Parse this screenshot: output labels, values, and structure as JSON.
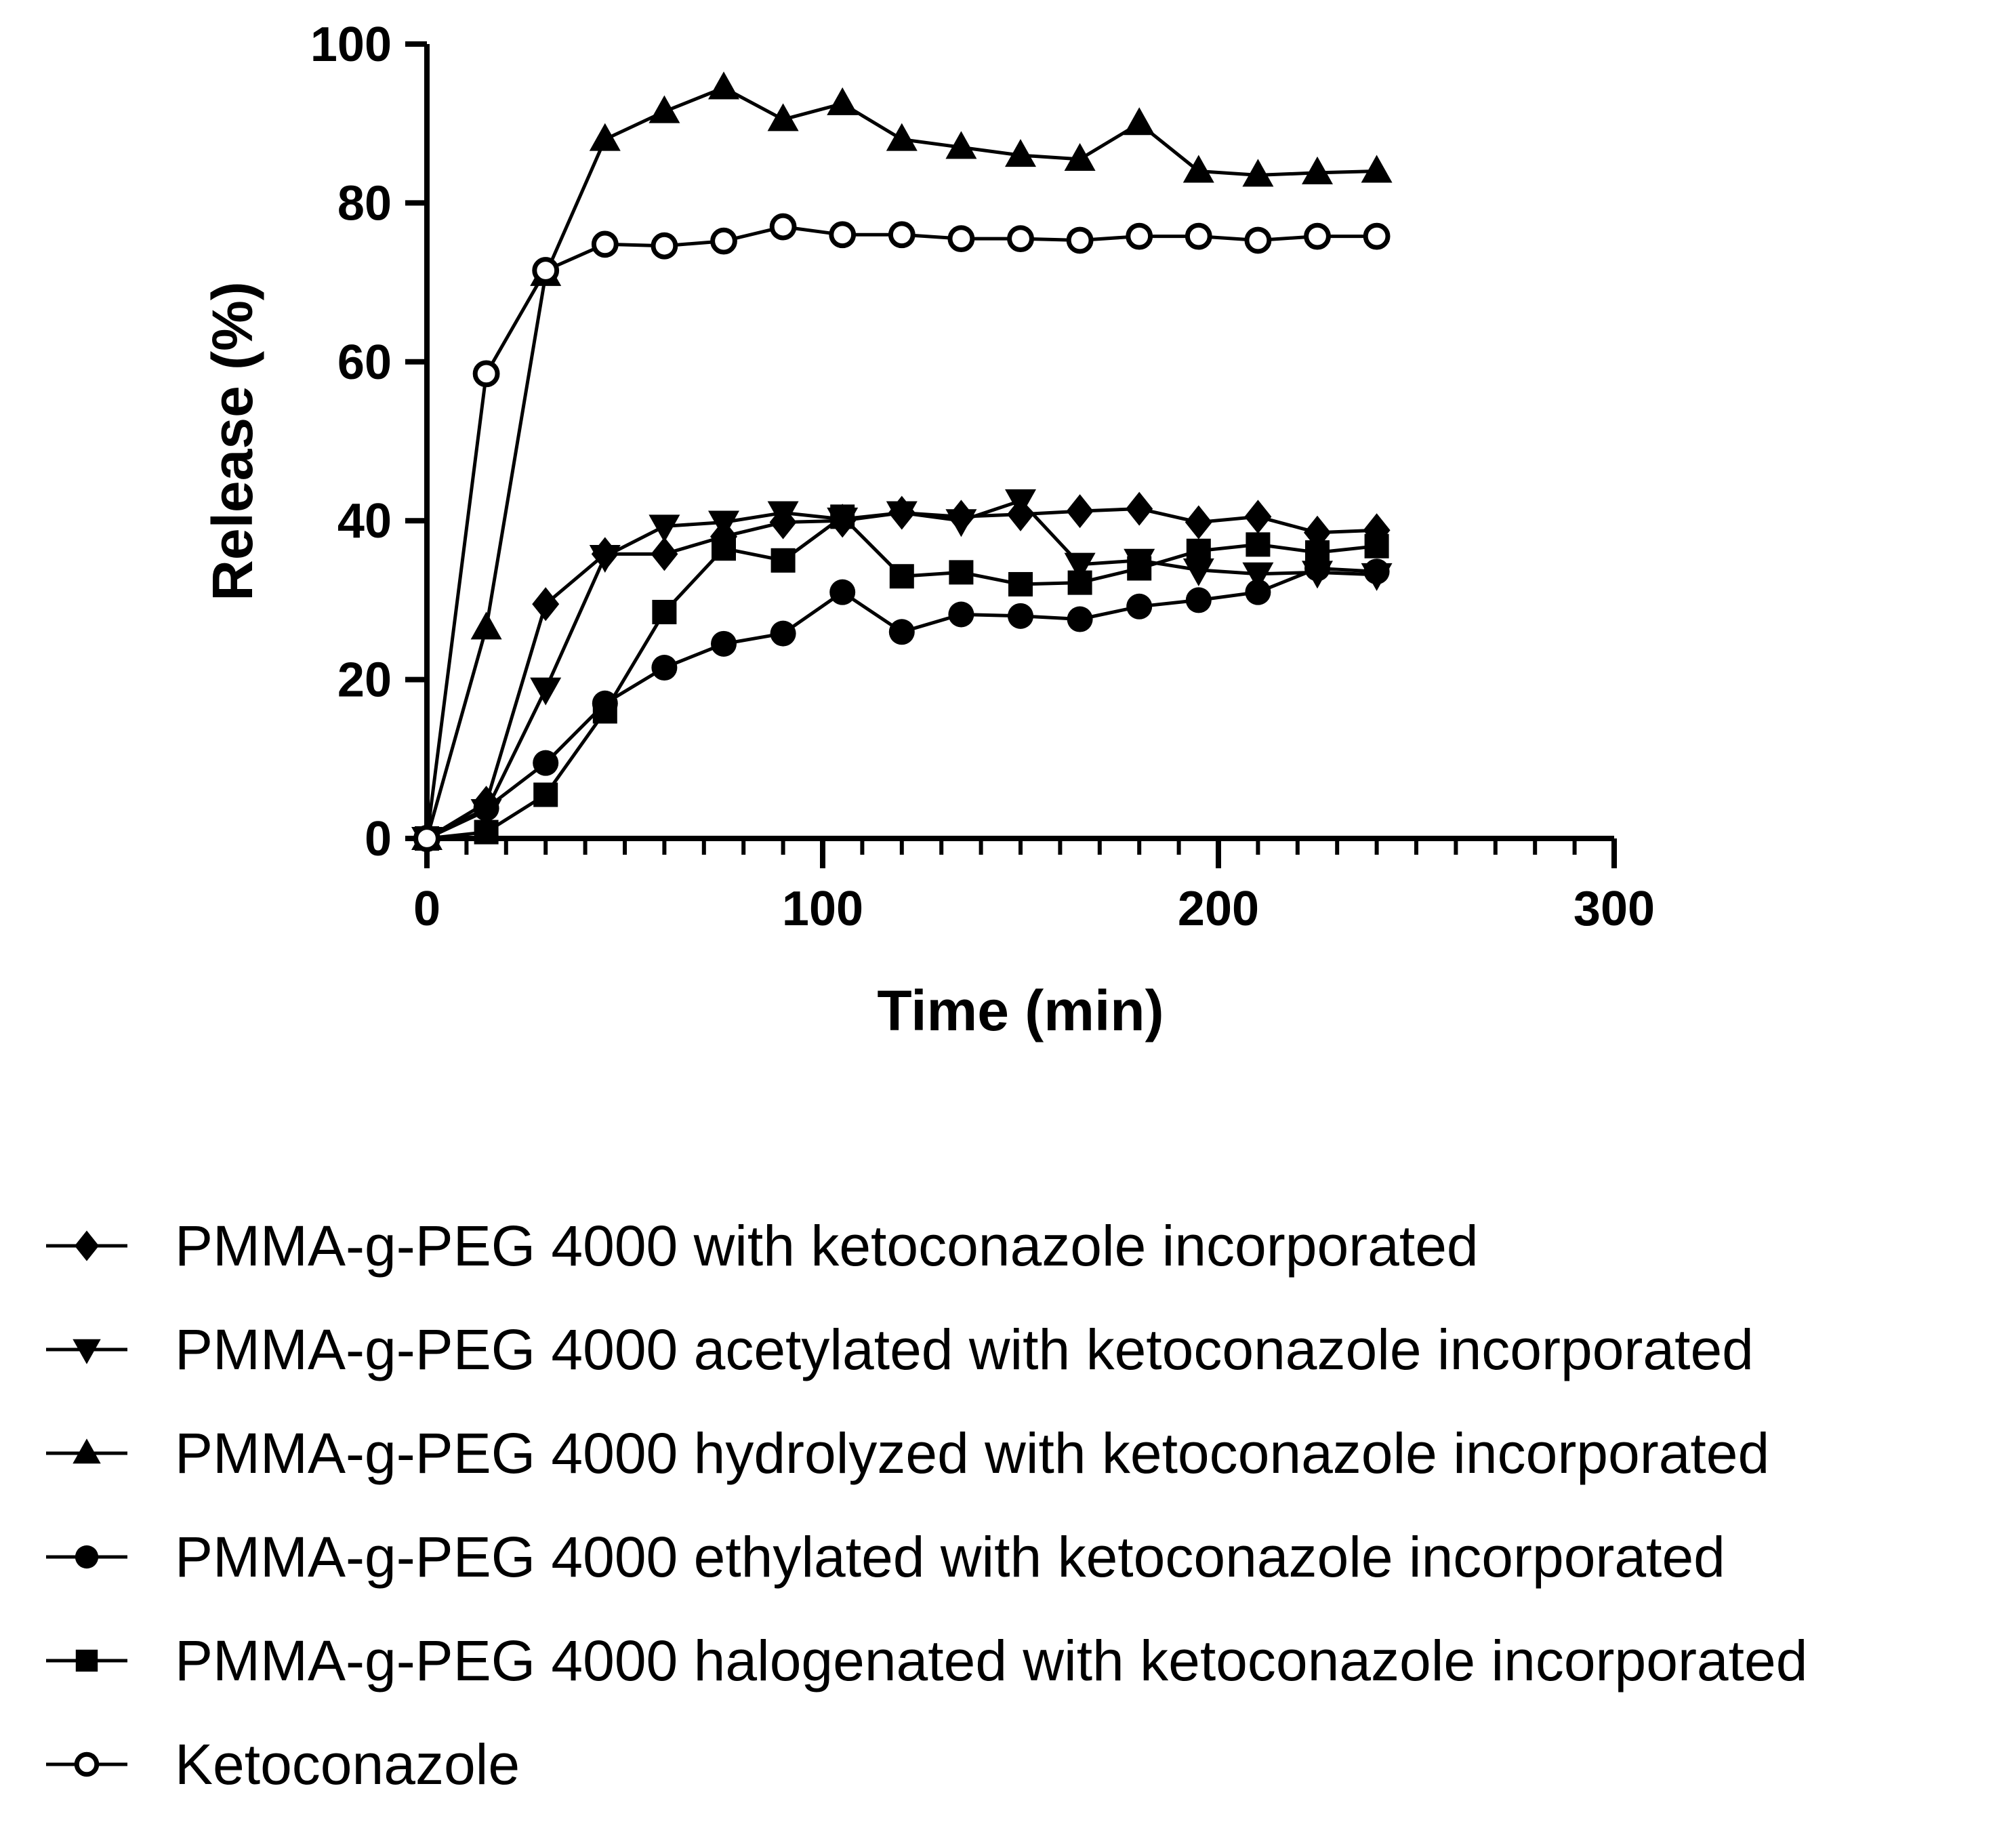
{
  "chart_data": {
    "type": "line",
    "title": "",
    "xlabel": "Time (min)",
    "ylabel": "Release (%)",
    "xlim": [
      0,
      300
    ],
    "ylim": [
      0,
      100
    ],
    "x_ticks": [
      0,
      100,
      200,
      300
    ],
    "x_tick_labels": [
      "0",
      "100",
      "200",
      "300"
    ],
    "y_ticks": [
      0,
      20,
      40,
      60,
      80,
      100
    ],
    "y_tick_labels": [
      "0",
      "20",
      "40",
      "60",
      "80",
      "100"
    ],
    "x_minor_step": 10,
    "legend_position": "bottom",
    "x": [
      0,
      15,
      30,
      45,
      60,
      75,
      90,
      105,
      120,
      135,
      150,
      165,
      180,
      195,
      210,
      225,
      240
    ],
    "series": [
      {
        "name": "PMMA-g-PEG 4000 with ketoconazole incorporated",
        "marker": "diamond",
        "color": "#000000",
        "values": [
          0,
          4.5,
          29.5,
          35.8,
          35.8,
          38.0,
          39.8,
          40.0,
          41.0,
          40.5,
          40.8,
          41.2,
          41.5,
          39.8,
          40.5,
          38.5,
          38.8
        ]
      },
      {
        "name": "PMMA-g-PEG 4000 acetylated with ketoconazole incorporated",
        "marker": "triangle-down",
        "color": "#000000",
        "values": [
          0,
          3.5,
          18.8,
          35.5,
          39.3,
          39.8,
          41.0,
          40.2,
          41.0,
          40.0,
          42.5,
          34.5,
          35.0,
          33.8,
          33.3,
          33.5,
          33.2
        ]
      },
      {
        "name": "PMMA-g-PEG 4000 hydrolyzed with ketoconazole incorporated",
        "marker": "triangle-up",
        "color": "#000000",
        "values": [
          0,
          26.5,
          71.0,
          88.0,
          91.5,
          94.5,
          90.5,
          92.5,
          88.0,
          87.0,
          86.0,
          85.5,
          90.0,
          84.0,
          83.5,
          83.8,
          84.0
        ]
      },
      {
        "name": "PMMA-g-PEG 4000 ethylated with ketoconazole incorporated",
        "marker": "circle",
        "color": "#000000",
        "values": [
          0,
          3.8,
          9.5,
          17.0,
          21.5,
          24.5,
          25.8,
          31.0,
          26.0,
          28.2,
          28.0,
          27.6,
          29.2,
          30.0,
          31.0,
          34.0,
          33.6
        ]
      },
      {
        "name": "PMMA-g-PEG 4000 halogenated with ketoconazole incorporated",
        "marker": "square",
        "color": "#000000",
        "values": [
          0,
          0.8,
          5.5,
          16.0,
          28.5,
          36.5,
          35.0,
          40.5,
          33.0,
          33.5,
          32.0,
          32.2,
          34.0,
          36.2,
          37.0,
          36.0,
          36.8
        ]
      },
      {
        "name": "Ketoconazole",
        "marker": "open-circle",
        "color": "#000000",
        "values": [
          0,
          58.5,
          71.5,
          74.8,
          74.6,
          75.2,
          77.0,
          76.0,
          76.0,
          75.5,
          75.5,
          75.3,
          75.8,
          75.8,
          75.3,
          75.8,
          75.8
        ]
      }
    ]
  }
}
